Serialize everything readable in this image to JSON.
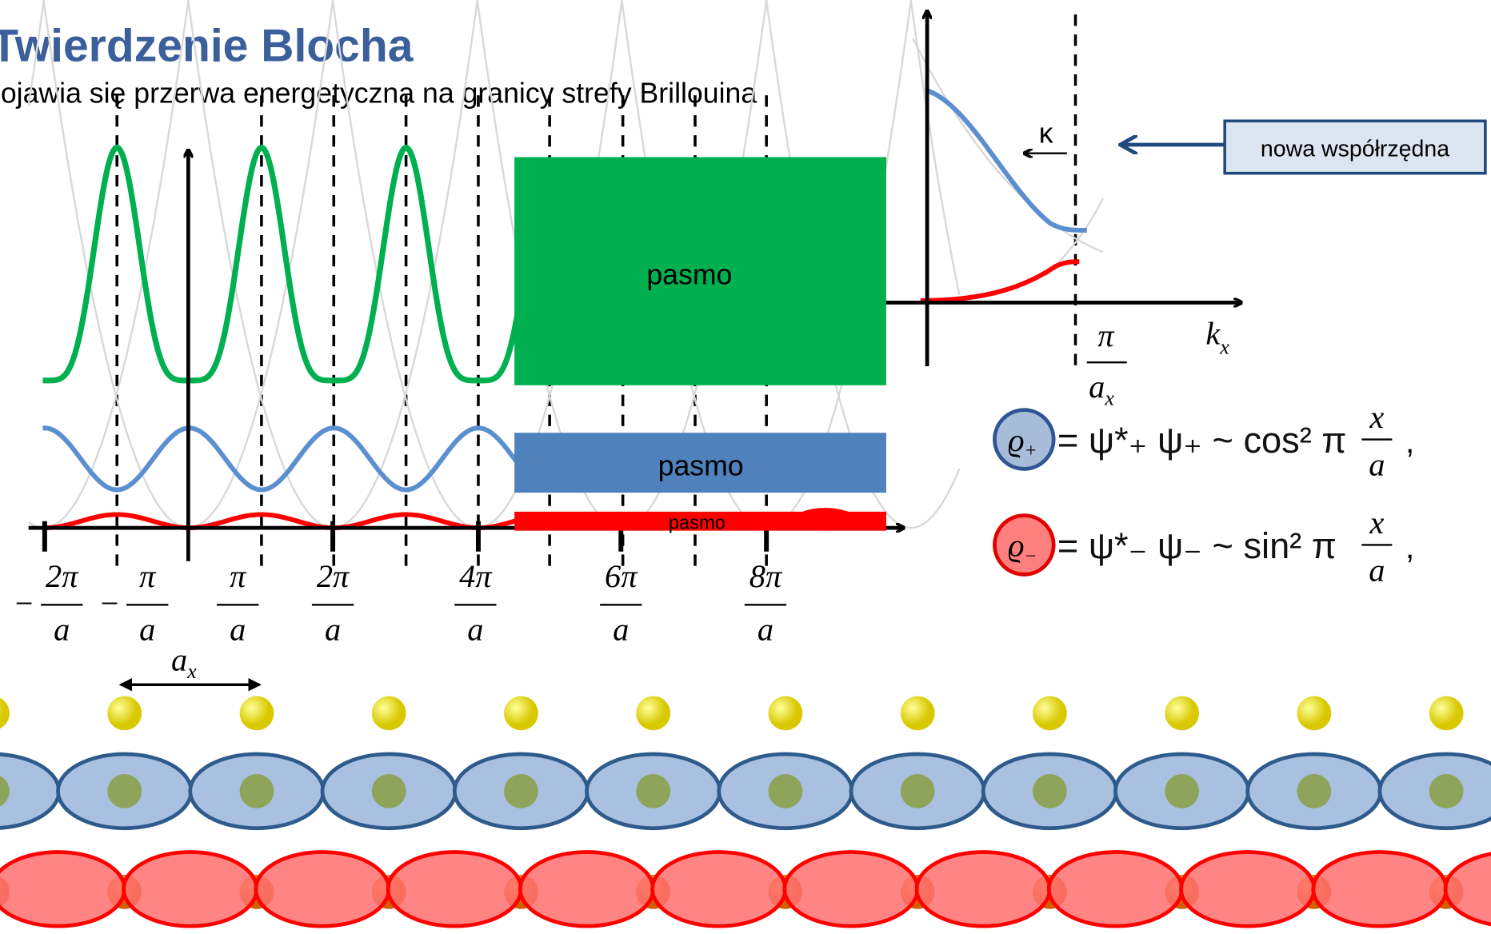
{
  "header": {
    "title": "Twierdzenie Blocha",
    "subtitle": "pojawia się przerwa energetyczna na granicy strefy Brillouina"
  },
  "left_plot": {
    "bands": [
      {
        "label": "pasmo"
      },
      {
        "label": "pasmo"
      },
      {
        "label": "pasmo"
      }
    ],
    "ticks": [
      {
        "sign": "−",
        "numerator": "2π",
        "denominator": "a"
      },
      {
        "sign": "−",
        "numerator": "π",
        "denominator": "a"
      },
      {
        "numerator": "π",
        "denominator": "a"
      },
      {
        "numerator": "2π",
        "denominator": "a"
      },
      {
        "numerator": "4π",
        "denominator": "a"
      },
      {
        "numerator": "6π",
        "denominator": "a"
      },
      {
        "numerator": "8π",
        "denominator": "a"
      }
    ],
    "period_label": {
      "main": "a",
      "sub": "x"
    }
  },
  "right_plot": {
    "kappa": "κ",
    "x_label": {
      "main": "k",
      "sub": "x"
    },
    "boundary": {
      "numerator": "π",
      "denominator": "a",
      "sub": "x"
    },
    "callout": "nowa współrzędna"
  },
  "formulas": [
    {
      "symbol": "ϱ",
      "sub": "+",
      "text": "= ψ*₊ ψ₊ ~ cos² π",
      "numerator": "x",
      "denominator": "a",
      "tail": ","
    },
    {
      "symbol": "ϱ",
      "sub": "−",
      "text": "= ψ*₋ ψ₋ ~ sin² π",
      "numerator": "x",
      "denominator": "a",
      "tail": ","
    }
  ]
}
